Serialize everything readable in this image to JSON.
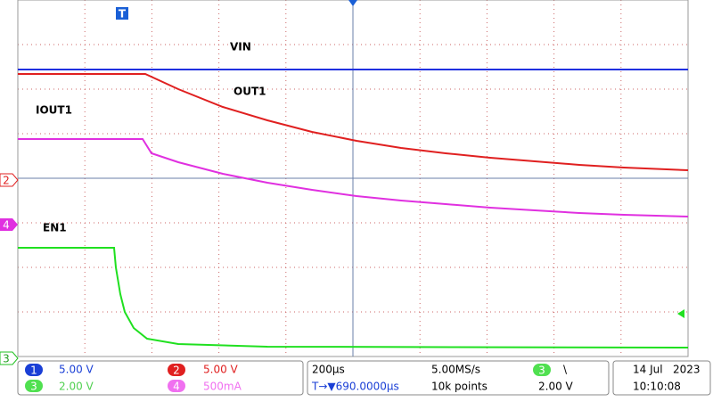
{
  "trace_labels": {
    "vin": "VIN",
    "out1": "OUT1",
    "iout1": "IOUT1",
    "en1": "EN1"
  },
  "markers": {
    "trigger": "T",
    "ch2": "2",
    "ch4": "4",
    "ch3": "3"
  },
  "channels": [
    {
      "id": "1",
      "scale": "5.00 V"
    },
    {
      "id": "2",
      "scale": "5.00 V"
    },
    {
      "id": "3",
      "scale": "2.00 V"
    },
    {
      "id": "4",
      "scale": "500mA"
    }
  ],
  "timebase": {
    "time_div": "200µs",
    "sample_rate": "5.00MS/s",
    "trigger_pos": "T→▼690.0000µs",
    "record": "10k points"
  },
  "trigger": {
    "source": "3",
    "slope": "\\",
    "level": "2.00 V"
  },
  "datetime": {
    "date": "14 Jul   2023",
    "time": "10:10:08"
  }
}
